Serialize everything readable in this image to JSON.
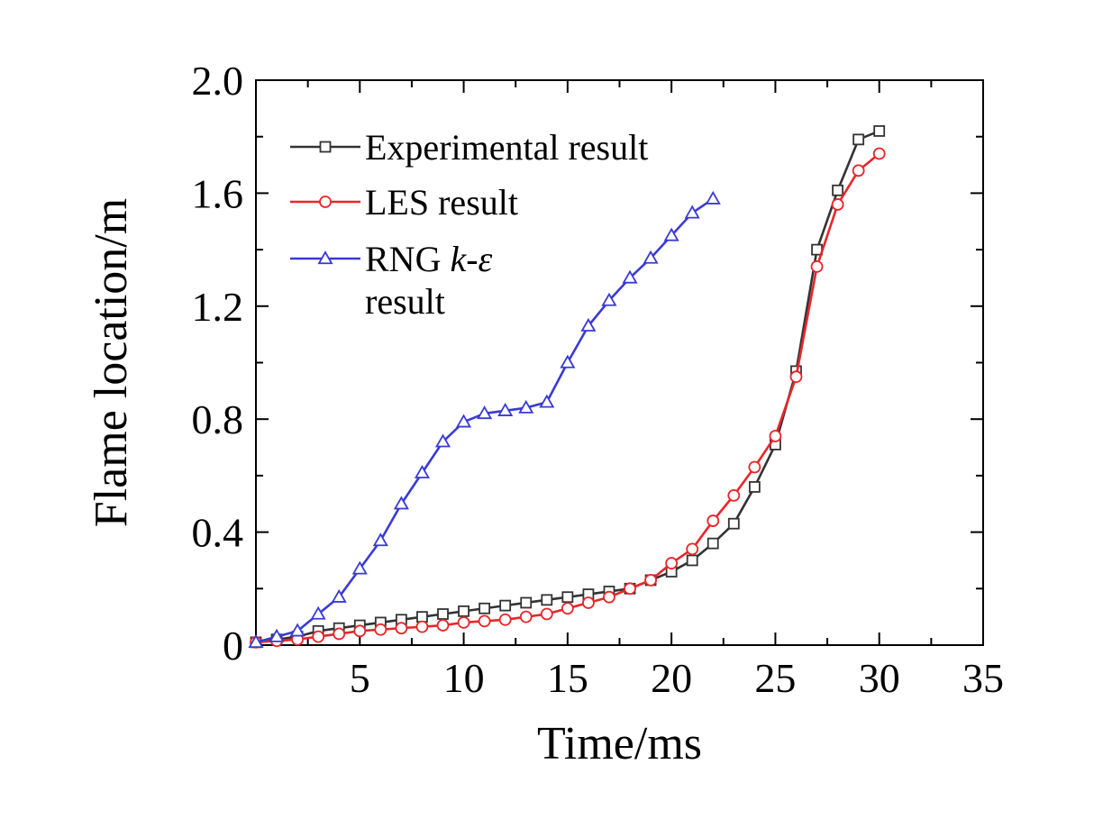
{
  "chart_data": {
    "type": "line",
    "xlabel": "Time/ms",
    "ylabel": "Flame location/m",
    "xlim": [
      0,
      35
    ],
    "ylim": [
      0,
      2.0
    ],
    "x_ticks": [
      5,
      10,
      15,
      20,
      25,
      30,
      35
    ],
    "x_tick_labels": [
      "5",
      "10",
      "15",
      "20",
      "25",
      "30",
      "35"
    ],
    "y_ticks": [
      0,
      0.4,
      0.8,
      1.2,
      1.6,
      2.0
    ],
    "y_tick_labels": [
      "0",
      "0.4",
      "0.8",
      "1.2",
      "1.6",
      "2.0"
    ],
    "grid": false,
    "legend_position": "top-left",
    "series": [
      {
        "name": "Experimental result",
        "color": "#333333",
        "marker": "square",
        "points": [
          [
            0,
            0.01
          ],
          [
            1,
            0.02
          ],
          [
            2,
            0.03
          ],
          [
            3,
            0.05
          ],
          [
            4,
            0.06
          ],
          [
            5,
            0.07
          ],
          [
            6,
            0.08
          ],
          [
            7,
            0.09
          ],
          [
            8,
            0.1
          ],
          [
            9,
            0.11
          ],
          [
            10,
            0.12
          ],
          [
            11,
            0.13
          ],
          [
            12,
            0.14
          ],
          [
            13,
            0.15
          ],
          [
            14,
            0.16
          ],
          [
            15,
            0.17
          ],
          [
            16,
            0.18
          ],
          [
            17,
            0.19
          ],
          [
            18,
            0.2
          ],
          [
            19,
            0.23
          ],
          [
            20,
            0.26
          ],
          [
            21,
            0.3
          ],
          [
            22,
            0.36
          ],
          [
            23,
            0.43
          ],
          [
            24,
            0.56
          ],
          [
            25,
            0.71
          ],
          [
            26,
            0.97
          ],
          [
            27,
            1.4
          ],
          [
            28,
            1.61
          ],
          [
            29,
            1.79
          ],
          [
            30,
            1.82
          ]
        ]
      },
      {
        "name": "LES result",
        "color": "#e8262a",
        "marker": "circle",
        "points": [
          [
            0,
            0.01
          ],
          [
            1,
            0.015
          ],
          [
            2,
            0.02
          ],
          [
            3,
            0.03
          ],
          [
            4,
            0.04
          ],
          [
            5,
            0.05
          ],
          [
            6,
            0.055
          ],
          [
            7,
            0.06
          ],
          [
            8,
            0.065
          ],
          [
            9,
            0.07
          ],
          [
            10,
            0.08
          ],
          [
            11,
            0.085
          ],
          [
            12,
            0.09
          ],
          [
            13,
            0.1
          ],
          [
            14,
            0.11
          ],
          [
            15,
            0.13
          ],
          [
            16,
            0.15
          ],
          [
            17,
            0.17
          ],
          [
            18,
            0.2
          ],
          [
            19,
            0.23
          ],
          [
            20,
            0.29
          ],
          [
            21,
            0.34
          ],
          [
            22,
            0.44
          ],
          [
            23,
            0.53
          ],
          [
            24,
            0.63
          ],
          [
            25,
            0.74
          ],
          [
            26,
            0.95
          ],
          [
            27,
            1.34
          ],
          [
            28,
            1.56
          ],
          [
            29,
            1.68
          ],
          [
            30,
            1.74
          ]
        ]
      },
      {
        "name": "RNG k-ε result",
        "name_parts": {
          "prefix": "RNG ",
          "k": "k",
          "dash": "-",
          "eps": "ε",
          "line2": "result"
        },
        "color": "#3a3ad6",
        "marker": "triangle",
        "points": [
          [
            0,
            0.01
          ],
          [
            1,
            0.03
          ],
          [
            2,
            0.05
          ],
          [
            3,
            0.11
          ],
          [
            4,
            0.17
          ],
          [
            5,
            0.27
          ],
          [
            6,
            0.37
          ],
          [
            7,
            0.5
          ],
          [
            8,
            0.61
          ],
          [
            9,
            0.72
          ],
          [
            10,
            0.79
          ],
          [
            11,
            0.82
          ],
          [
            12,
            0.83
          ],
          [
            13,
            0.84
          ],
          [
            14,
            0.86
          ],
          [
            15,
            1.0
          ],
          [
            16,
            1.13
          ],
          [
            17,
            1.22
          ],
          [
            18,
            1.3
          ],
          [
            19,
            1.37
          ],
          [
            20,
            1.45
          ],
          [
            21,
            1.53
          ],
          [
            22,
            1.58
          ]
        ]
      }
    ]
  }
}
